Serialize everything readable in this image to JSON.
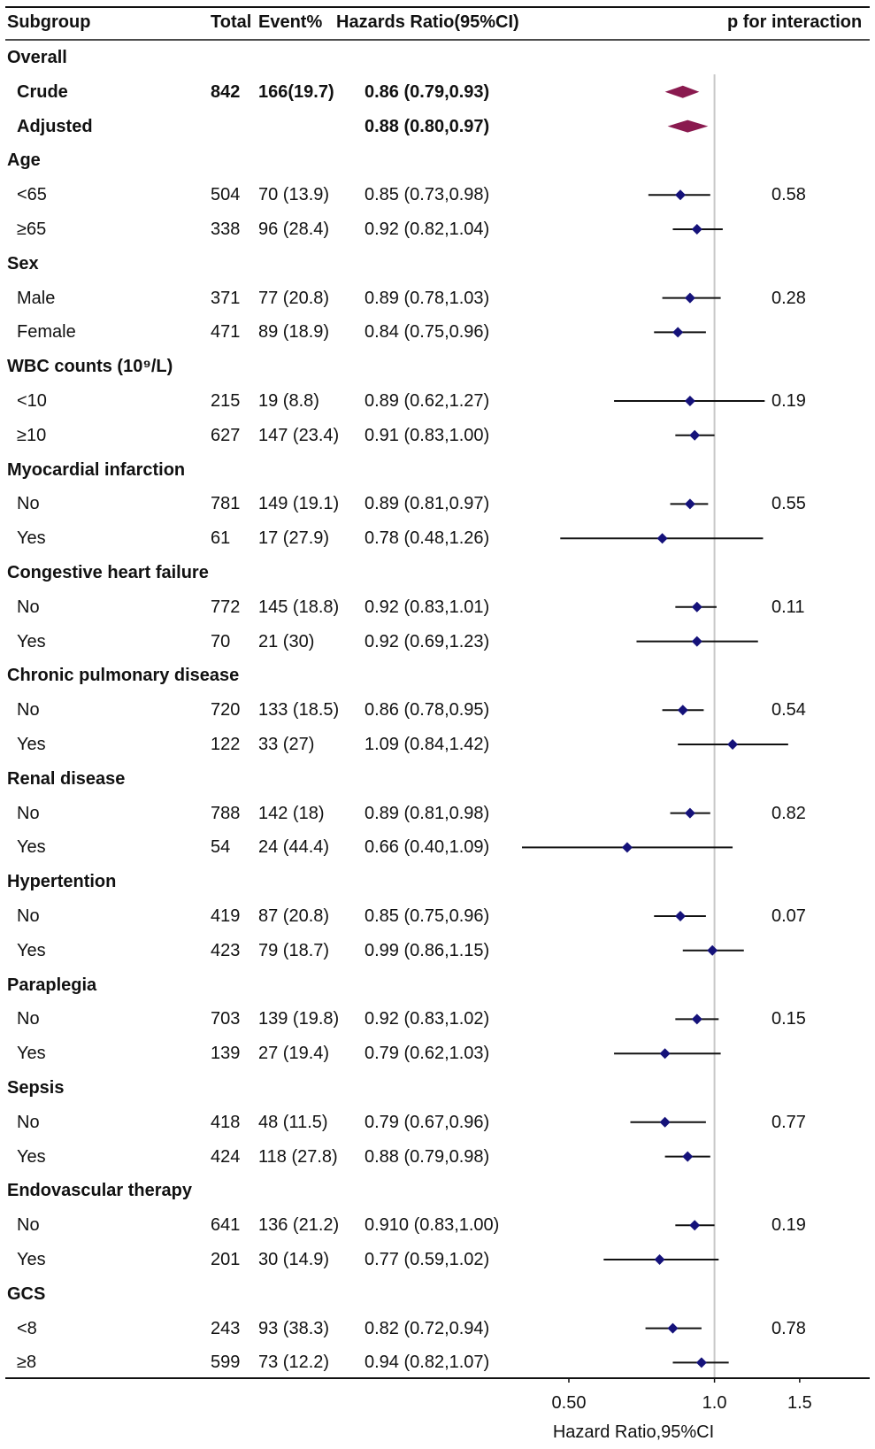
{
  "header": {
    "subgroup": "Subgroup",
    "total": "Total",
    "event": "Event%",
    "hr": "Hazards Ratio(95%CI)",
    "p": "p for interaction"
  },
  "rows": [
    {
      "label": "Overall",
      "heading": true
    },
    {
      "label": "Crude",
      "total": "842",
      "event": "166(19.7)",
      "hr_text": "0.86 (0.79,0.93)",
      "bold": true,
      "hr": 0.86,
      "lo": 0.79,
      "hi": 0.93,
      "shape": "diamond"
    },
    {
      "label": "Adjusted",
      "hr_text": "0.88 (0.80,0.97)",
      "bold": true,
      "hr": 0.88,
      "lo": 0.8,
      "hi": 0.97,
      "shape": "diamond"
    },
    {
      "label": "Age",
      "heading": true
    },
    {
      "label": "<65",
      "total": "504",
      "event": "70 (13.9)",
      "hr_text": "0.85 (0.73,0.98)",
      "p": "0.58",
      "hr": 0.85,
      "lo": 0.73,
      "hi": 0.98
    },
    {
      "label": "≥65",
      "total": "338",
      "event": "96 (28.4)",
      "hr_text": "0.92 (0.82,1.04)",
      "hr": 0.92,
      "lo": 0.82,
      "hi": 1.04
    },
    {
      "label": "Sex",
      "heading": true
    },
    {
      "label": "Male",
      "total": "371",
      "event": "77 (20.8)",
      "hr_text": "0.89 (0.78,1.03)",
      "p": "0.28",
      "hr": 0.89,
      "lo": 0.78,
      "hi": 1.03
    },
    {
      "label": "Female",
      "total": "471",
      "event": "89 (18.9)",
      "hr_text": "0.84 (0.75,0.96)",
      "hr": 0.84,
      "lo": 0.75,
      "hi": 0.96
    },
    {
      "label": "WBC counts (10⁹/L)",
      "heading": true
    },
    {
      "label": "<10",
      "total": "215",
      "event": "19 (8.8)",
      "hr_text": "0.89 (0.62,1.27)",
      "p": "0.19",
      "hr": 0.89,
      "lo": 0.62,
      "hi": 1.27
    },
    {
      "label": "≥10",
      "total": "627",
      "event": "147 (23.4)",
      "hr_text": "0.91 (0.83,1.00)",
      "hr": 0.91,
      "lo": 0.83,
      "hi": 1.0
    },
    {
      "label": "Myocardial infarction",
      "heading": true
    },
    {
      "label": "No",
      "total": "781",
      "event": "149 (19.1)",
      "hr_text": "0.89 (0.81,0.97)",
      "p": "0.55",
      "hr": 0.89,
      "lo": 0.81,
      "hi": 0.97
    },
    {
      "label": "Yes",
      "total": "61",
      "event": "17 (27.9)",
      "hr_text": "0.78 (0.48,1.26)",
      "hr": 0.78,
      "lo": 0.48,
      "hi": 1.26
    },
    {
      "label": "Congestive heart failure",
      "heading": true
    },
    {
      "label": "No",
      "total": "772",
      "event": "145 (18.8)",
      "hr_text": "0.92 (0.83,1.01)",
      "p": "0.11",
      "hr": 0.92,
      "lo": 0.83,
      "hi": 1.01
    },
    {
      "label": "Yes",
      "total": "70",
      "event": "21 (30)",
      "hr_text": "0.92 (0.69,1.23)",
      "hr": 0.92,
      "lo": 0.69,
      "hi": 1.23
    },
    {
      "label": "Chronic pulmonary disease",
      "heading": true
    },
    {
      "label": "No",
      "total": "720",
      "event": "133 (18.5)",
      "hr_text": "0.86 (0.78,0.95)",
      "p": "0.54",
      "hr": 0.86,
      "lo": 0.78,
      "hi": 0.95
    },
    {
      "label": "Yes",
      "total": "122",
      "event": "33 (27)",
      "hr_text": "1.09 (0.84,1.42)",
      "hr": 1.09,
      "lo": 0.84,
      "hi": 1.42
    },
    {
      "label": "Renal disease",
      "heading": true
    },
    {
      "label": "No",
      "total": "788",
      "event": "142 (18)",
      "hr_text": "0.89 (0.81,0.98)",
      "p": "0.82",
      "hr": 0.89,
      "lo": 0.81,
      "hi": 0.98
    },
    {
      "label": "Yes",
      "total": "54",
      "event": "24 (44.4)",
      "hr_text": "0.66 (0.40,1.09)",
      "hr": 0.66,
      "lo": 0.4,
      "hi": 1.09
    },
    {
      "label": "Hypertention",
      "heading": true
    },
    {
      "label": "No",
      "total": "419",
      "event": "87 (20.8)",
      "hr_text": "0.85 (0.75,0.96)",
      "p": "0.07",
      "hr": 0.85,
      "lo": 0.75,
      "hi": 0.96
    },
    {
      "label": "Yes",
      "total": "423",
      "event": "79 (18.7)",
      "hr_text": "0.99 (0.86,1.15)",
      "hr": 0.99,
      "lo": 0.86,
      "hi": 1.15
    },
    {
      "label": "Paraplegia",
      "heading": true
    },
    {
      "label": "No",
      "total": "703",
      "event": "139 (19.8)",
      "hr_text": "0.92 (0.83,1.02)",
      "p": "0.15",
      "hr": 0.92,
      "lo": 0.83,
      "hi": 1.02
    },
    {
      "label": "Yes",
      "total": "139",
      "event": "27 (19.4)",
      "hr_text": "0.79 (0.62,1.03)",
      "hr": 0.79,
      "lo": 0.62,
      "hi": 1.03
    },
    {
      "label": "Sepsis",
      "heading": true
    },
    {
      "label": "No",
      "total": "418",
      "event": "48 (11.5)",
      "hr_text": "0.79 (0.67,0.96)",
      "p": "0.77",
      "hr": 0.79,
      "lo": 0.67,
      "hi": 0.96
    },
    {
      "label": "Yes",
      "total": "424",
      "event": "118 (27.8)",
      "hr_text": "0.88 (0.79,0.98)",
      "hr": 0.88,
      "lo": 0.79,
      "hi": 0.98
    },
    {
      "label": "Endovascular therapy",
      "heading": true
    },
    {
      "label": "No",
      "total": "641",
      "event": "136 (21.2)",
      "hr_text": "0.910 (0.83,1.00)",
      "p": "0.19",
      "hr": 0.91,
      "lo": 0.83,
      "hi": 1.0
    },
    {
      "label": "Yes",
      "total": "201",
      "event": "30 (14.9)",
      "hr_text": "0.77 (0.59,1.02)",
      "hr": 0.77,
      "lo": 0.59,
      "hi": 1.02
    },
    {
      "label": "GCS",
      "heading": true
    },
    {
      "label": "<8",
      "total": "243",
      "event": "93 (38.3)",
      "hr_text": "0.82 (0.72,0.94)",
      "p": "0.78",
      "hr": 0.82,
      "lo": 0.72,
      "hi": 0.94
    },
    {
      "label": "≥8",
      "total": "599",
      "event": "73 (12.2)",
      "hr_text": "0.94 (0.82,1.07)",
      "hr": 0.94,
      "lo": 0.82,
      "hi": 1.07
    }
  ],
  "chart_data": {
    "type": "forest",
    "xscale": "log",
    "xlim": [
      0.4,
      1.9
    ],
    "reference_line": 1.0,
    "ticks": [
      {
        "value": 0.5,
        "label": "0.50"
      },
      {
        "value": 1.0,
        "label": "1.0"
      },
      {
        "value": 1.5,
        "label": "1.5"
      }
    ],
    "xlabel": "Hazard Ratio,95%CI"
  },
  "colors": {
    "point": "#15127a",
    "diamond": "#8a1a4f",
    "line": "#111111",
    "reference": "#c8c8c8"
  }
}
